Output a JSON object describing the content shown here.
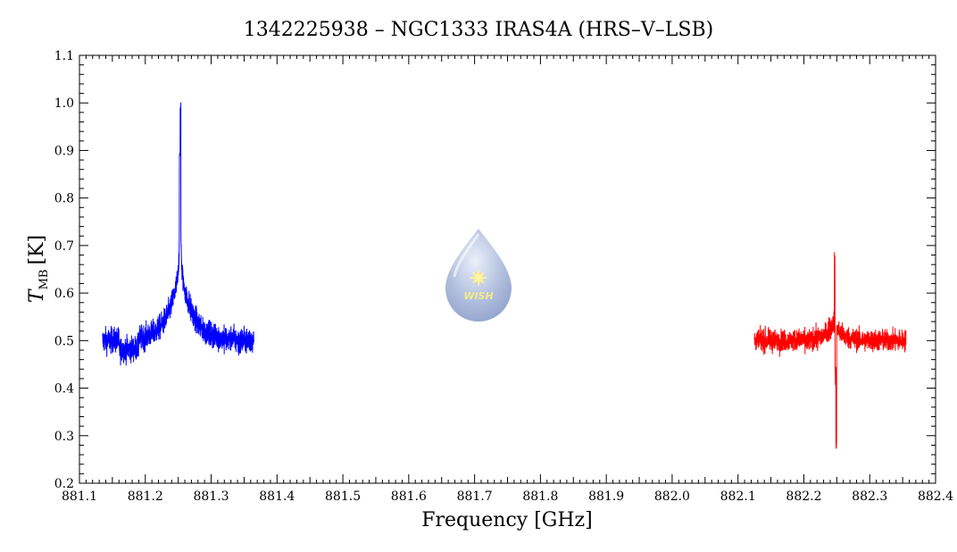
{
  "chart_data": {
    "type": "line",
    "title": "1342225938 – NGC1333 IRAS4A (HRS–V–LSB)",
    "xlabel": "Frequency [GHz]",
    "ylabel_main": "T",
    "ylabel_sub": "MB",
    "ylabel_unit": "[K]",
    "xlim": [
      881.1,
      882.4
    ],
    "ylim": [
      0.2,
      1.1
    ],
    "x_ticks": [
      "881.1",
      "881.2",
      "881.3",
      "881.4",
      "881.5",
      "881.6",
      "881.7",
      "881.8",
      "881.9",
      "882.0",
      "882.1",
      "882.2",
      "882.3",
      "882.4"
    ],
    "y_ticks": [
      "0.2",
      "0.3",
      "0.4",
      "0.5",
      "0.6",
      "0.7",
      "0.8",
      "0.9",
      "1.0",
      "1.1"
    ],
    "grid": false,
    "series": [
      {
        "color": "#0000ff",
        "x_range": [
          881.135,
          881.365
        ],
        "baseline": 0.5,
        "noise_amplitude": 0.035,
        "features": [
          {
            "center": 881.253,
            "peak": 0.9,
            "kind": "emission-narrow"
          },
          {
            "center": 881.254,
            "peak": 1.01,
            "kind": "emission-spike"
          },
          {
            "center": 881.25,
            "peak": 0.66,
            "kind": "emission-broad"
          },
          {
            "center": 881.17,
            "min": 0.38,
            "kind": "noise-dip"
          }
        ]
      },
      {
        "color": "#ff0000",
        "x_range": [
          882.125,
          882.355
        ],
        "baseline": 0.5,
        "noise_amplitude": 0.03,
        "features": [
          {
            "center": 882.247,
            "peak": 0.66,
            "kind": "emission-spike"
          },
          {
            "center": 882.249,
            "min": 0.24,
            "kind": "absorption-spike"
          }
        ]
      }
    ],
    "logo": {
      "text": "WISH",
      "icon": "water-drop-icon"
    }
  }
}
